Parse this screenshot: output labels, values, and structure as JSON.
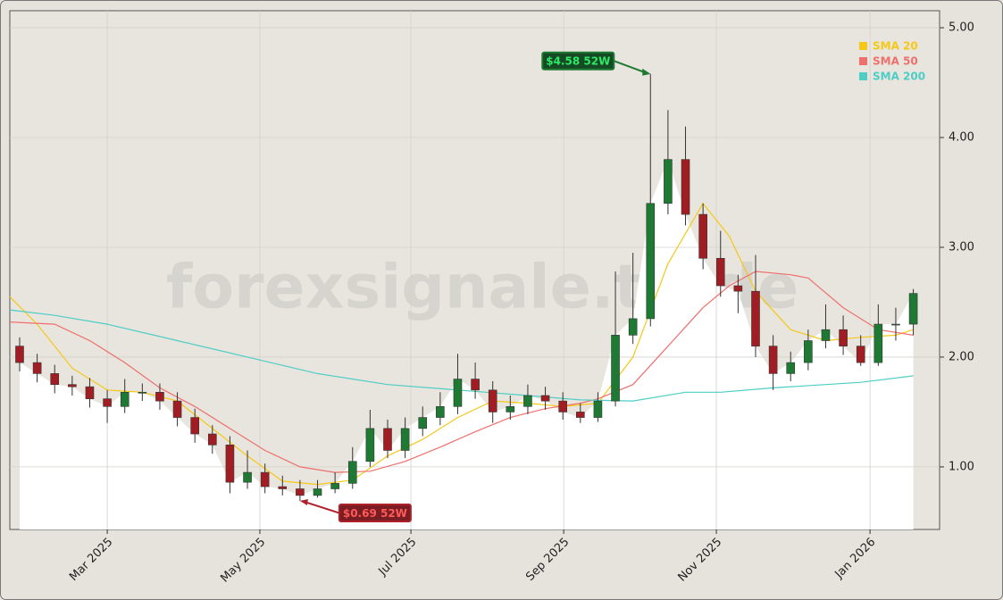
{
  "chart_data": {
    "type": "candlestick",
    "watermark": "forexsignale.trade",
    "x": [
      -5,
      -4,
      -3,
      -2,
      -1,
      0,
      1,
      2,
      3,
      4,
      5,
      6,
      7,
      8,
      9,
      10,
      11,
      12,
      13,
      14,
      15,
      16,
      17,
      18,
      19,
      20,
      21,
      22,
      23,
      24,
      25,
      26,
      27,
      28,
      29,
      30,
      31,
      32,
      33,
      34,
      35,
      36,
      37,
      38,
      39,
      40,
      41,
      42,
      43,
      44,
      45,
      46
    ],
    "open": [
      2.1,
      1.95,
      1.85,
      1.75,
      1.73,
      1.62,
      1.55,
      1.68,
      1.68,
      1.6,
      1.45,
      1.3,
      1.2,
      0.86,
      0.95,
      0.82,
      0.8,
      0.74,
      0.8,
      0.85,
      1.05,
      1.35,
      1.15,
      1.35,
      1.45,
      1.55,
      1.8,
      1.7,
      1.5,
      1.55,
      1.65,
      1.6,
      1.5,
      1.45,
      1.6,
      2.2,
      2.35,
      3.4,
      3.8,
      3.3,
      2.9,
      2.65,
      2.6,
      2.1,
      1.85,
      1.95,
      2.15,
      2.25,
      2.1,
      1.95,
      2.3,
      2.3
    ],
    "high": [
      2.18,
      2.03,
      1.93,
      1.83,
      1.81,
      1.7,
      1.8,
      1.76,
      1.76,
      1.68,
      1.53,
      1.38,
      1.28,
      1.15,
      1.03,
      0.92,
      0.88,
      0.88,
      0.95,
      1.18,
      1.52,
      1.43,
      1.45,
      1.55,
      1.68,
      2.03,
      1.95,
      1.78,
      1.65,
      1.75,
      1.73,
      1.68,
      1.58,
      1.68,
      2.78,
      2.95,
      4.58,
      4.25,
      4.1,
      3.4,
      3.15,
      2.75,
      2.93,
      2.2,
      2.05,
      2.25,
      2.48,
      2.38,
      2.2,
      2.48,
      2.45,
      2.62
    ],
    "low": [
      1.87,
      1.77,
      1.67,
      1.65,
      1.54,
      1.4,
      1.49,
      1.6,
      1.52,
      1.37,
      1.22,
      1.12,
      0.76,
      0.8,
      0.76,
      0.74,
      0.69,
      0.72,
      0.76,
      0.8,
      1.0,
      1.08,
      1.08,
      1.28,
      1.38,
      1.48,
      1.62,
      1.4,
      1.43,
      1.48,
      1.52,
      1.43,
      1.4,
      1.41,
      1.55,
      2.12,
      2.28,
      3.3,
      3.2,
      2.8,
      2.55,
      2.4,
      2.0,
      1.7,
      1.78,
      1.88,
      2.08,
      2.02,
      1.92,
      1.92,
      2.15,
      2.2
    ],
    "close": [
      1.95,
      1.85,
      1.75,
      1.73,
      1.62,
      1.55,
      1.68,
      1.68,
      1.6,
      1.45,
      1.3,
      1.2,
      0.86,
      0.95,
      0.82,
      0.8,
      0.74,
      0.8,
      0.85,
      1.05,
      1.35,
      1.15,
      1.35,
      1.45,
      1.55,
      1.8,
      1.7,
      1.5,
      1.55,
      1.65,
      1.6,
      1.5,
      1.45,
      1.6,
      2.2,
      2.35,
      3.4,
      3.8,
      3.3,
      2.9,
      2.65,
      2.6,
      2.1,
      1.85,
      1.95,
      2.15,
      2.25,
      2.1,
      1.95,
      2.3,
      2.3,
      2.58
    ],
    "up_color": "#1e7a32",
    "down_color": "#a01e23",
    "series": [
      {
        "name": "SMA 20",
        "color": "#f5c816",
        "x": [
          -5.56,
          -4,
          -2,
          0,
          2,
          4,
          6,
          8,
          10,
          12,
          14,
          16,
          18,
          20,
          22,
          24,
          26,
          28,
          30,
          32,
          34,
          35.5,
          37,
          39,
          41,
          43,
          45,
          46
        ],
        "values": [
          2.55,
          2.3,
          1.9,
          1.7,
          1.68,
          1.6,
          1.35,
          1.1,
          0.87,
          0.84,
          0.88,
          1.1,
          1.25,
          1.45,
          1.6,
          1.58,
          1.55,
          1.58,
          2.0,
          2.85,
          3.4,
          3.1,
          2.6,
          2.25,
          2.15,
          2.18,
          2.2,
          2.25
        ]
      },
      {
        "name": "SMA 50",
        "color": "#ef6f6c",
        "x": [
          -5.56,
          -3,
          -1,
          1,
          3,
          5,
          7,
          9,
          11,
          13,
          15,
          17,
          19,
          21,
          23,
          25,
          27,
          28,
          30,
          32,
          34,
          35.5,
          37,
          39,
          40,
          42,
          44,
          46
        ],
        "values": [
          2.32,
          2.3,
          2.15,
          1.95,
          1.72,
          1.55,
          1.35,
          1.15,
          1.0,
          0.95,
          0.96,
          1.05,
          1.18,
          1.32,
          1.45,
          1.53,
          1.58,
          1.62,
          1.75,
          2.1,
          2.45,
          2.65,
          2.78,
          2.75,
          2.72,
          2.45,
          2.25,
          2.2
        ]
      },
      {
        "name": "SMA 200",
        "color": "#4ecdc4",
        "x": [
          -5.56,
          -3,
          0,
          4,
          8,
          12,
          16,
          20,
          24,
          27,
          30,
          33,
          35,
          38,
          41,
          43,
          46
        ],
        "values": [
          2.43,
          2.38,
          2.3,
          2.15,
          2.0,
          1.85,
          1.75,
          1.7,
          1.65,
          1.61,
          1.6,
          1.68,
          1.68,
          1.72,
          1.75,
          1.77,
          1.83
        ]
      }
    ],
    "annotations": [
      {
        "label": "$4.58 52W",
        "value": 4.58,
        "x": 31,
        "color": "#1e7a32",
        "text_color": "#2ee866"
      },
      {
        "label": "$0.69 52W",
        "value": 0.69,
        "x": 11,
        "color": "#b0202a",
        "text_color": "#ff5a5a"
      }
    ],
    "xlim": [
      -5.56,
      47.5
    ],
    "xticks": [
      {
        "value": 0,
        "label": "Mar 2025"
      },
      {
        "value": 8.71,
        "label": "May 2025"
      },
      {
        "value": 17.33,
        "label": "Jul 2025"
      },
      {
        "value": 26.05,
        "label": "Sep 2025"
      },
      {
        "value": 34.76,
        "label": "Nov 2025"
      },
      {
        "value": 43.53,
        "label": "Jan 2026"
      }
    ],
    "ylim": [
      0.43,
      5.155
    ],
    "yticks": [
      {
        "value": 1,
        "label": "1.00"
      },
      {
        "value": 2,
        "label": "2.00"
      },
      {
        "value": 3,
        "label": "3.00"
      },
      {
        "value": 4,
        "label": "4.00"
      },
      {
        "value": 5,
        "label": "5.00"
      }
    ],
    "grid": true
  }
}
